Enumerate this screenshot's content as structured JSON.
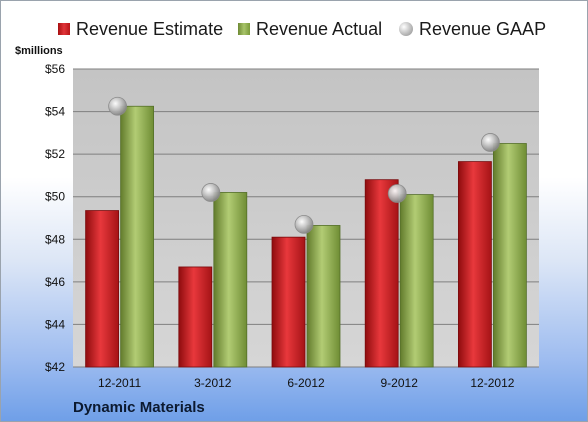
{
  "unit_label": "$millions",
  "company": "Dynamic Materials",
  "colors": {
    "estimate": "#c8191d",
    "actual": "#8fae4e",
    "gaap": "#b4b4b4",
    "plot_background": "#c9c9c9"
  },
  "chart_data": {
    "type": "bar",
    "title": "",
    "xlabel": "",
    "ylabel": "$millions",
    "legend_position": "top",
    "grid": true,
    "categories": [
      "12-2011",
      "3-2012",
      "6-2012",
      "9-2012",
      "12-2012"
    ],
    "ylim": [
      42,
      56
    ],
    "yticks": [
      42,
      44,
      46,
      48,
      50,
      52,
      54,
      56
    ],
    "ytick_labels": [
      "$42",
      "$44",
      "$46",
      "$48",
      "$50",
      "$52",
      "$54",
      "$56"
    ],
    "series": [
      {
        "name": "Revenue Estimate",
        "kind": "bar",
        "values": [
          49.35,
          46.7,
          48.1,
          50.8,
          51.65
        ]
      },
      {
        "name": "Revenue Actual",
        "kind": "bar",
        "values": [
          54.25,
          50.2,
          48.65,
          50.1,
          52.5
        ]
      },
      {
        "name": "Revenue GAAP",
        "kind": "marker",
        "values": [
          54.25,
          50.2,
          48.7,
          50.15,
          52.55
        ]
      }
    ]
  }
}
